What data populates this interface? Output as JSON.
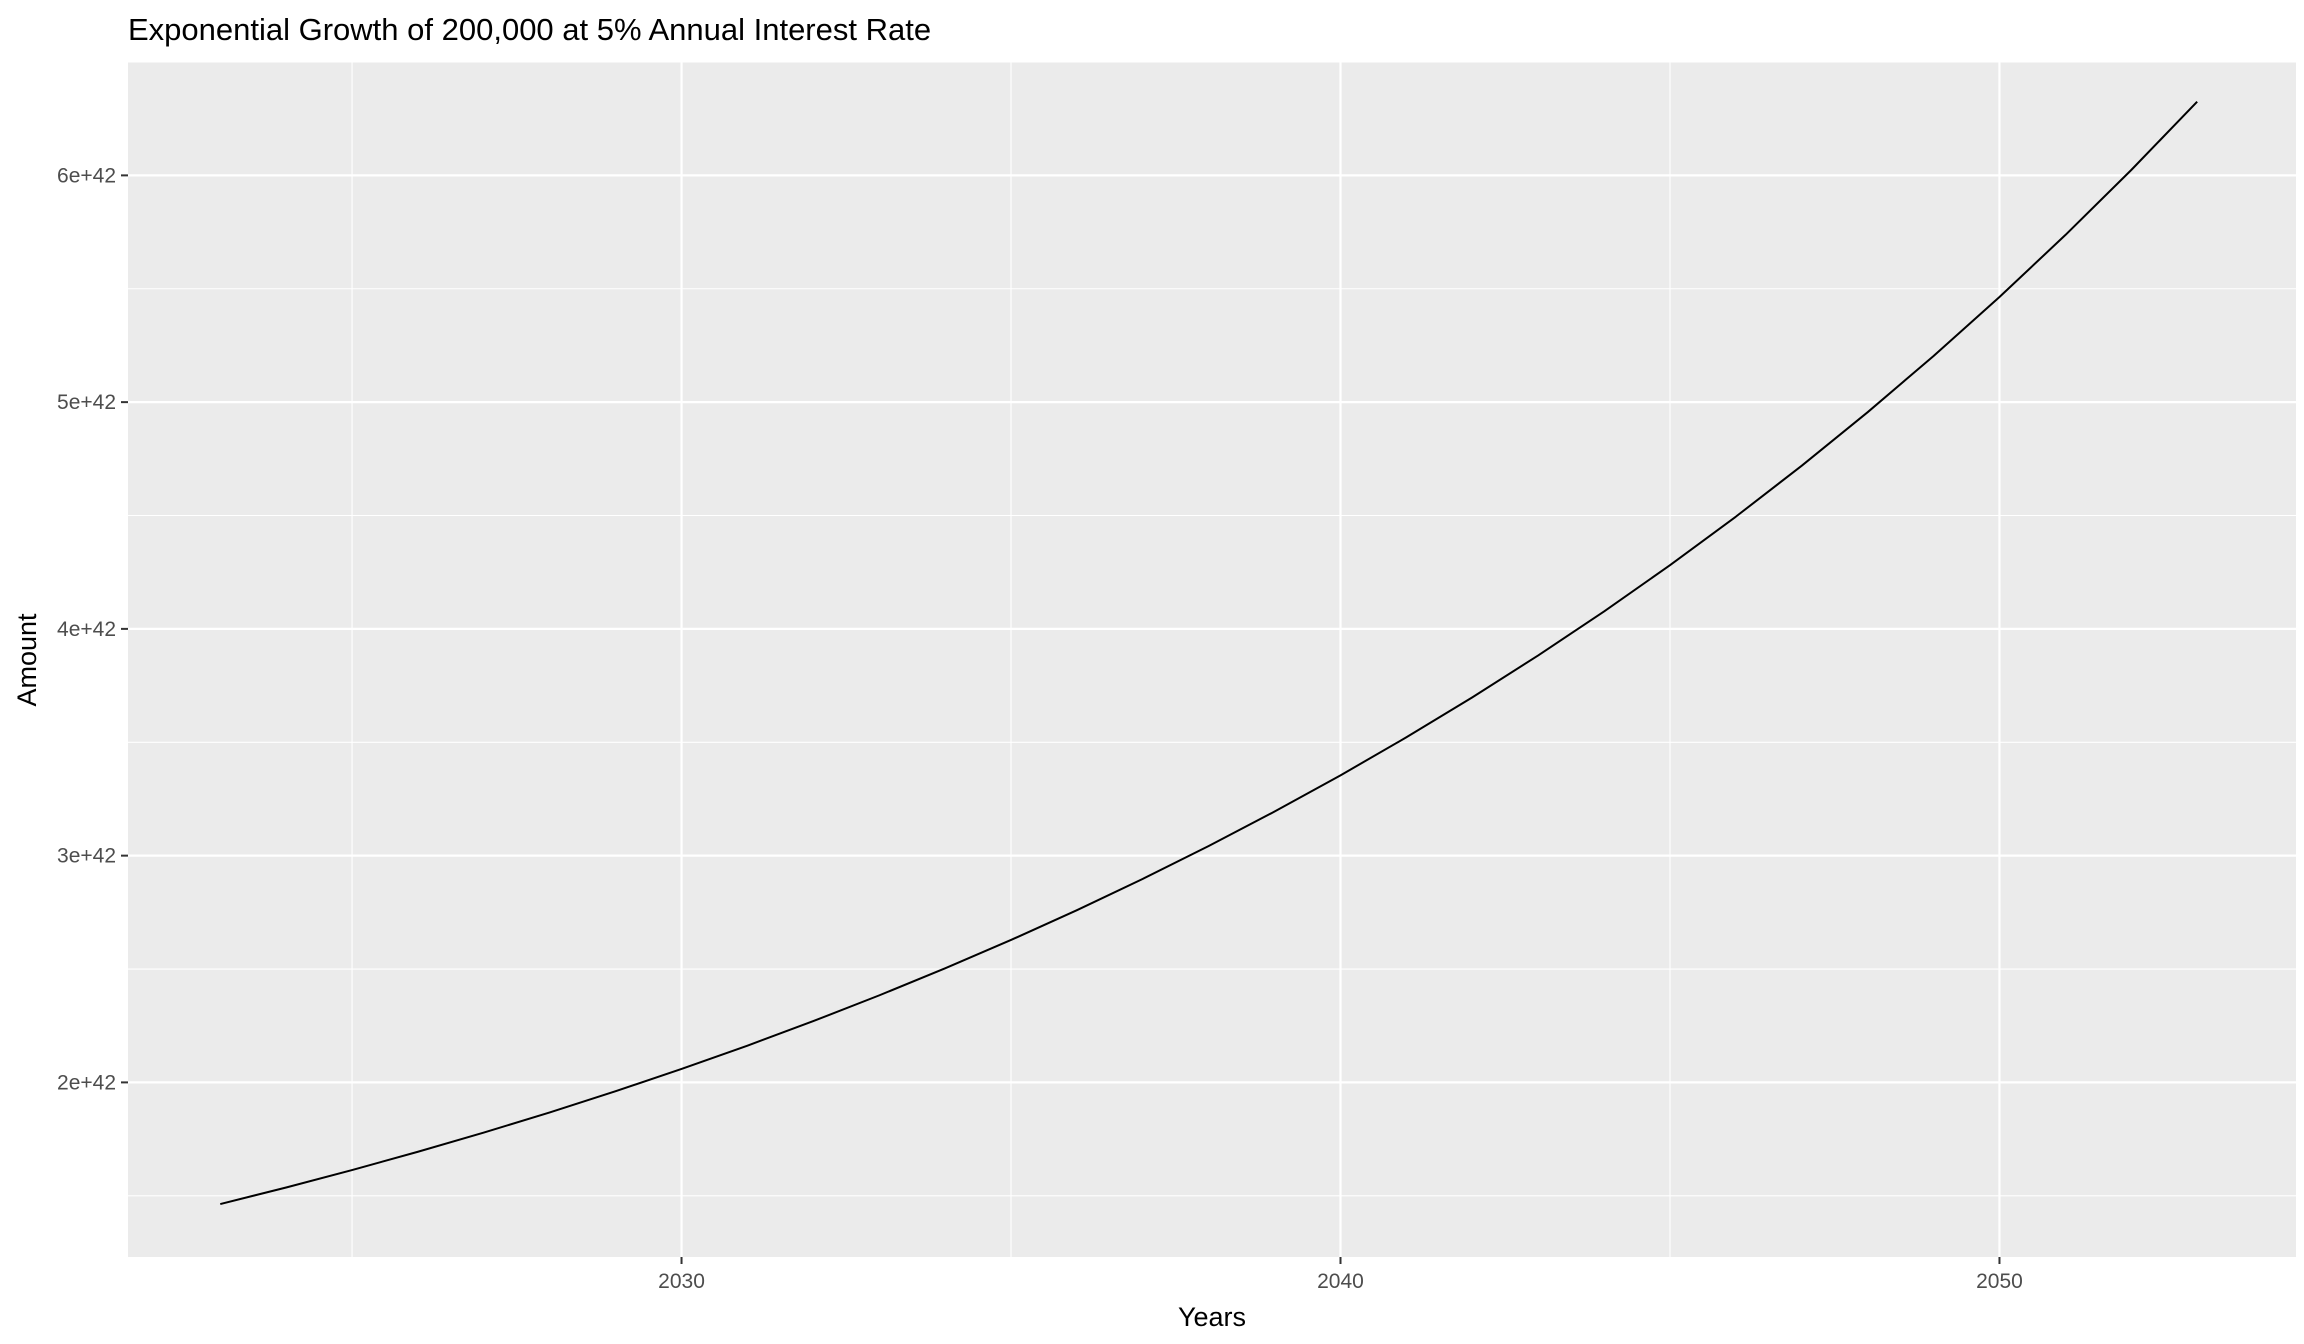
{
  "chart_data": {
    "type": "line",
    "title": "Exponential Growth of 200,000 at 5% Annual Interest Rate",
    "xlabel": "Years",
    "ylabel": "Amount",
    "xlim": [
      2021.6,
      2054.5
    ],
    "ylim": [
      1.23e+42,
      6.5e+42
    ],
    "x_ticks": [
      2030,
      2040,
      2050
    ],
    "x_tick_labels": [
      "2030",
      "2040",
      "2050"
    ],
    "x_minor_ticks": [
      2025,
      2035,
      2045
    ],
    "y_ticks": [
      2e+42,
      3e+42,
      4e+42,
      5e+42,
      6e+42
    ],
    "y_tick_labels": [
      "2e+42",
      "3e+42",
      "4e+42",
      "5e+42",
      "6e+42"
    ],
    "y_minor_ticks": [
      1.5e+42,
      2.5e+42,
      3.5e+42,
      4.5e+42,
      5.5e+42,
      6.5e+42
    ],
    "grid": true,
    "legend": "none",
    "colors": {
      "panel_background": "#ebebeb",
      "grid": "#ffffff",
      "line": "#000000",
      "tick_label": "#4d4d4d",
      "tick_mark": "#333333"
    },
    "series": [
      {
        "x": [
          2023,
          2024,
          2025,
          2026,
          2027,
          2028,
          2029,
          2030,
          2031,
          2032,
          2033,
          2034,
          2035,
          2036,
          2037,
          2038,
          2039,
          2040,
          2041,
          2042,
          2043,
          2044,
          2045,
          2046,
          2047,
          2048,
          2049,
          2050,
          2051,
          2052,
          2053
        ],
        "values": [
          1.4634e+42,
          1.5366e+42,
          1.6134e+42,
          1.6941e+42,
          1.7788e+42,
          1.8677e+42,
          1.9611e+42,
          2.0592e+42,
          2.1621e+42,
          2.2703e+42,
          2.3838e+42,
          2.503e+42,
          2.6281e+42,
          2.7595e+42,
          2.8975e+42,
          3.0424e+42,
          3.1945e+42,
          3.3542e+42,
          3.5219e+42,
          3.698e+42,
          3.8829e+42,
          4.0771e+42,
          4.2809e+42,
          4.495e+42,
          4.7197e+42,
          4.9557e+42,
          5.2035e+42,
          5.4637e+42,
          5.7369e+42,
          6.0237e+42,
          6.3249e+42
        ]
      }
    ]
  }
}
